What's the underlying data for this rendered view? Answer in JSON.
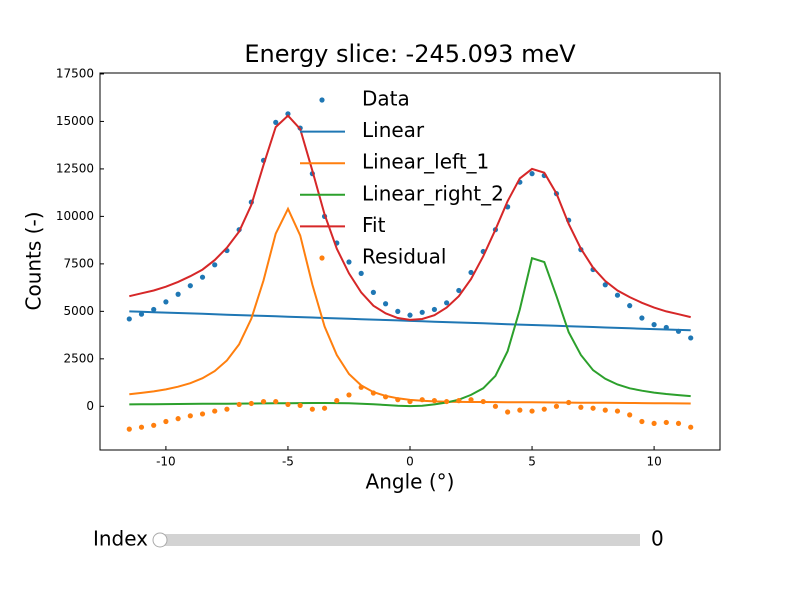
{
  "chart_data": {
    "type": "line",
    "title": "Energy slice: -245.093 meV",
    "xlabel": "Angle (°)",
    "ylabel": "Counts (-)",
    "xlim": [
      -12.7,
      12.7
    ],
    "ylim": [
      -2300,
      17550
    ],
    "xticks": [
      -10,
      -5,
      0,
      5,
      10
    ],
    "yticks": [
      0,
      2500,
      5000,
      7500,
      10000,
      12500,
      15000,
      17500
    ],
    "legend": "upper center",
    "x": [
      -11.5,
      -11,
      -10.5,
      -10,
      -9.5,
      -9,
      -8.5,
      -8,
      -7.5,
      -7,
      -6.5,
      -6,
      -5.5,
      -5,
      -4.5,
      -4,
      -3.5,
      -3,
      -2.5,
      -2,
      -1.5,
      -1,
      -0.5,
      0,
      0.5,
      1,
      1.5,
      2,
      2.5,
      3,
      3.5,
      4,
      4.5,
      5,
      5.5,
      6,
      6.5,
      7,
      7.5,
      8,
      8.5,
      9,
      9.5,
      10,
      10.5,
      11,
      11.5
    ],
    "series": [
      {
        "name": "Data",
        "kind": "scatter",
        "color": "#1f77b4",
        "values": [
          4600,
          4850,
          5100,
          5500,
          5900,
          6350,
          6800,
          7450,
          8200,
          9300,
          10750,
          12950,
          14950,
          15400,
          14650,
          12250,
          10000,
          8600,
          7600,
          7000,
          6000,
          5400,
          5000,
          4800,
          4950,
          5100,
          5450,
          6100,
          7050,
          8150,
          9300,
          10500,
          11800,
          12250,
          12150,
          11200,
          9800,
          8250,
          7200,
          6400,
          5850,
          5300,
          4650,
          4300,
          4150,
          3950,
          3600
        ]
      },
      {
        "name": "Linear",
        "kind": "line",
        "color": "#1f77b4",
        "values": [
          5000,
          4978,
          4957,
          4935,
          4913,
          4892,
          4870,
          4848,
          4826,
          4805,
          4783,
          4761,
          4739,
          4718,
          4696,
          4674,
          4652,
          4631,
          4609,
          4587,
          4565,
          4544,
          4522,
          4500,
          4478,
          4457,
          4435,
          4413,
          4391,
          4370,
          4348,
          4326,
          4304,
          4283,
          4261,
          4239,
          4217,
          4196,
          4174,
          4152,
          4130,
          4109,
          4087,
          4065,
          4043,
          4022,
          4000
        ]
      },
      {
        "name": "Linear_left_1",
        "kind": "line",
        "color": "#ff7f0e",
        "values": [
          640,
          705,
          787,
          892,
          1031,
          1219,
          1480,
          1854,
          2410,
          3263,
          4606,
          6626,
          9091,
          10400,
          9000,
          6400,
          4200,
          2700,
          1700,
          1100,
          750,
          550,
          420,
          340,
          290,
          260,
          240,
          230,
          225,
          225,
          222,
          218,
          215,
          210,
          205,
          200,
          196,
          192,
          188,
          184,
          180,
          176,
          172,
          166,
          162,
          156,
          150
        ]
      },
      {
        "name": "Linear_right_2",
        "kind": "line",
        "color": "#2ca02c",
        "values": [
          100,
          105,
          110,
          115,
          120,
          125,
          130,
          135,
          140,
          145,
          150,
          155,
          160,
          165,
          170,
          175,
          175,
          170,
          160,
          140,
          110,
          70,
          30,
          10,
          30,
          100,
          200,
          350,
          600,
          950,
          1600,
          2900,
          5100,
          7800,
          7600,
          5800,
          3900,
          2700,
          1900,
          1450,
          1150,
          950,
          820,
          720,
          650,
          590,
          540
        ]
      },
      {
        "name": "Fit",
        "kind": "line",
        "color": "#d62728",
        "values": [
          5800,
          5950,
          6100,
          6300,
          6550,
          6850,
          7200,
          7700,
          8350,
          9200,
          10600,
          12700,
          14700,
          15300,
          14600,
          12400,
          10100,
          8300,
          7000,
          6000,
          5300,
          4900,
          4650,
          4550,
          4600,
          4800,
          5200,
          5800,
          6700,
          7900,
          9300,
          10800,
          12000,
          12500,
          12300,
          11200,
          9600,
          8300,
          7300,
          6600,
          6100,
          5750,
          5450,
          5200,
          5000,
          4850,
          4700
        ]
      },
      {
        "name": "Residual",
        "kind": "scatter",
        "color": "#ff7f0e",
        "values": [
          -1200,
          -1100,
          -1000,
          -800,
          -650,
          -500,
          -400,
          -250,
          -150,
          100,
          150,
          250,
          250,
          100,
          50,
          -150,
          -100,
          300,
          600,
          1000,
          700,
          500,
          350,
          250,
          350,
          300,
          250,
          300,
          350,
          250,
          0,
          -300,
          -200,
          -250,
          -150,
          0,
          200,
          -50,
          -100,
          -200,
          -250,
          -450,
          -800,
          -900,
          -850,
          -900,
          -1100
        ]
      }
    ]
  },
  "slider": {
    "label": "Index",
    "value": 0
  }
}
